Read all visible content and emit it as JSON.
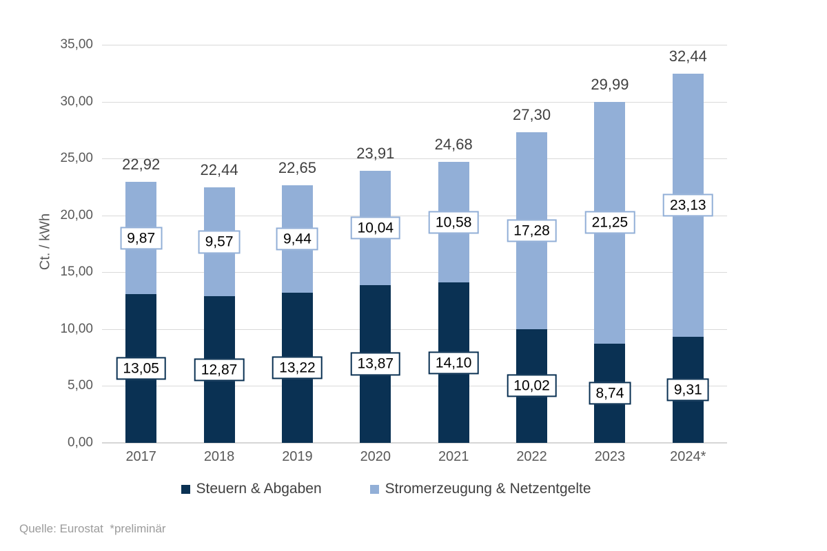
{
  "chart_data": {
    "type": "bar",
    "stacked": true,
    "title": "",
    "xlabel": "",
    "ylabel": "Ct. / kWh",
    "ylim": [
      0,
      35
    ],
    "ytick_step": 5,
    "ytick_labels": [
      "0,00",
      "5,00",
      "10,00",
      "15,00",
      "20,00",
      "25,00",
      "30,00",
      "35,00"
    ],
    "categories": [
      "2017",
      "2018",
      "2019",
      "2020",
      "2021",
      "2022",
      "2023",
      "2024*"
    ],
    "series": [
      {
        "name": "Steuern & Abgaben",
        "color": "#0a3153",
        "values": [
          13.05,
          12.87,
          13.22,
          13.87,
          14.1,
          10.02,
          8.74,
          9.31
        ],
        "labels": [
          "13,05",
          "12,87",
          "13,22",
          "13,87",
          "14,10",
          "10,02",
          "8,74",
          "9,31"
        ]
      },
      {
        "name": "Stromerzeugung & Netzentgelte",
        "color": "#92afd7",
        "values": [
          9.87,
          9.57,
          9.44,
          10.04,
          10.58,
          17.28,
          21.25,
          23.13
        ],
        "labels": [
          "9,87",
          "9,57",
          "9,44",
          "10,04",
          "10,58",
          "17,28",
          "21,25",
          "23,13"
        ]
      }
    ],
    "totals": [
      22.92,
      22.44,
      22.65,
      23.91,
      24.68,
      27.3,
      29.99,
      32.44
    ],
    "total_labels": [
      "22,92",
      "22,44",
      "22,65",
      "23,91",
      "24,68",
      "27,30",
      "29,99",
      "32,44"
    ],
    "legend_position": "bottom",
    "grid": true
  },
  "colors": {
    "gridline": "#d9d9d9",
    "axis_text": "#595959",
    "total_text": "#404040",
    "legend_text": "#404040",
    "source_text": "#9b9b9b",
    "label_box_bg": "#ffffff",
    "label_text": "#000000"
  },
  "source_note": "Quelle: Eurostat  *preliminär"
}
